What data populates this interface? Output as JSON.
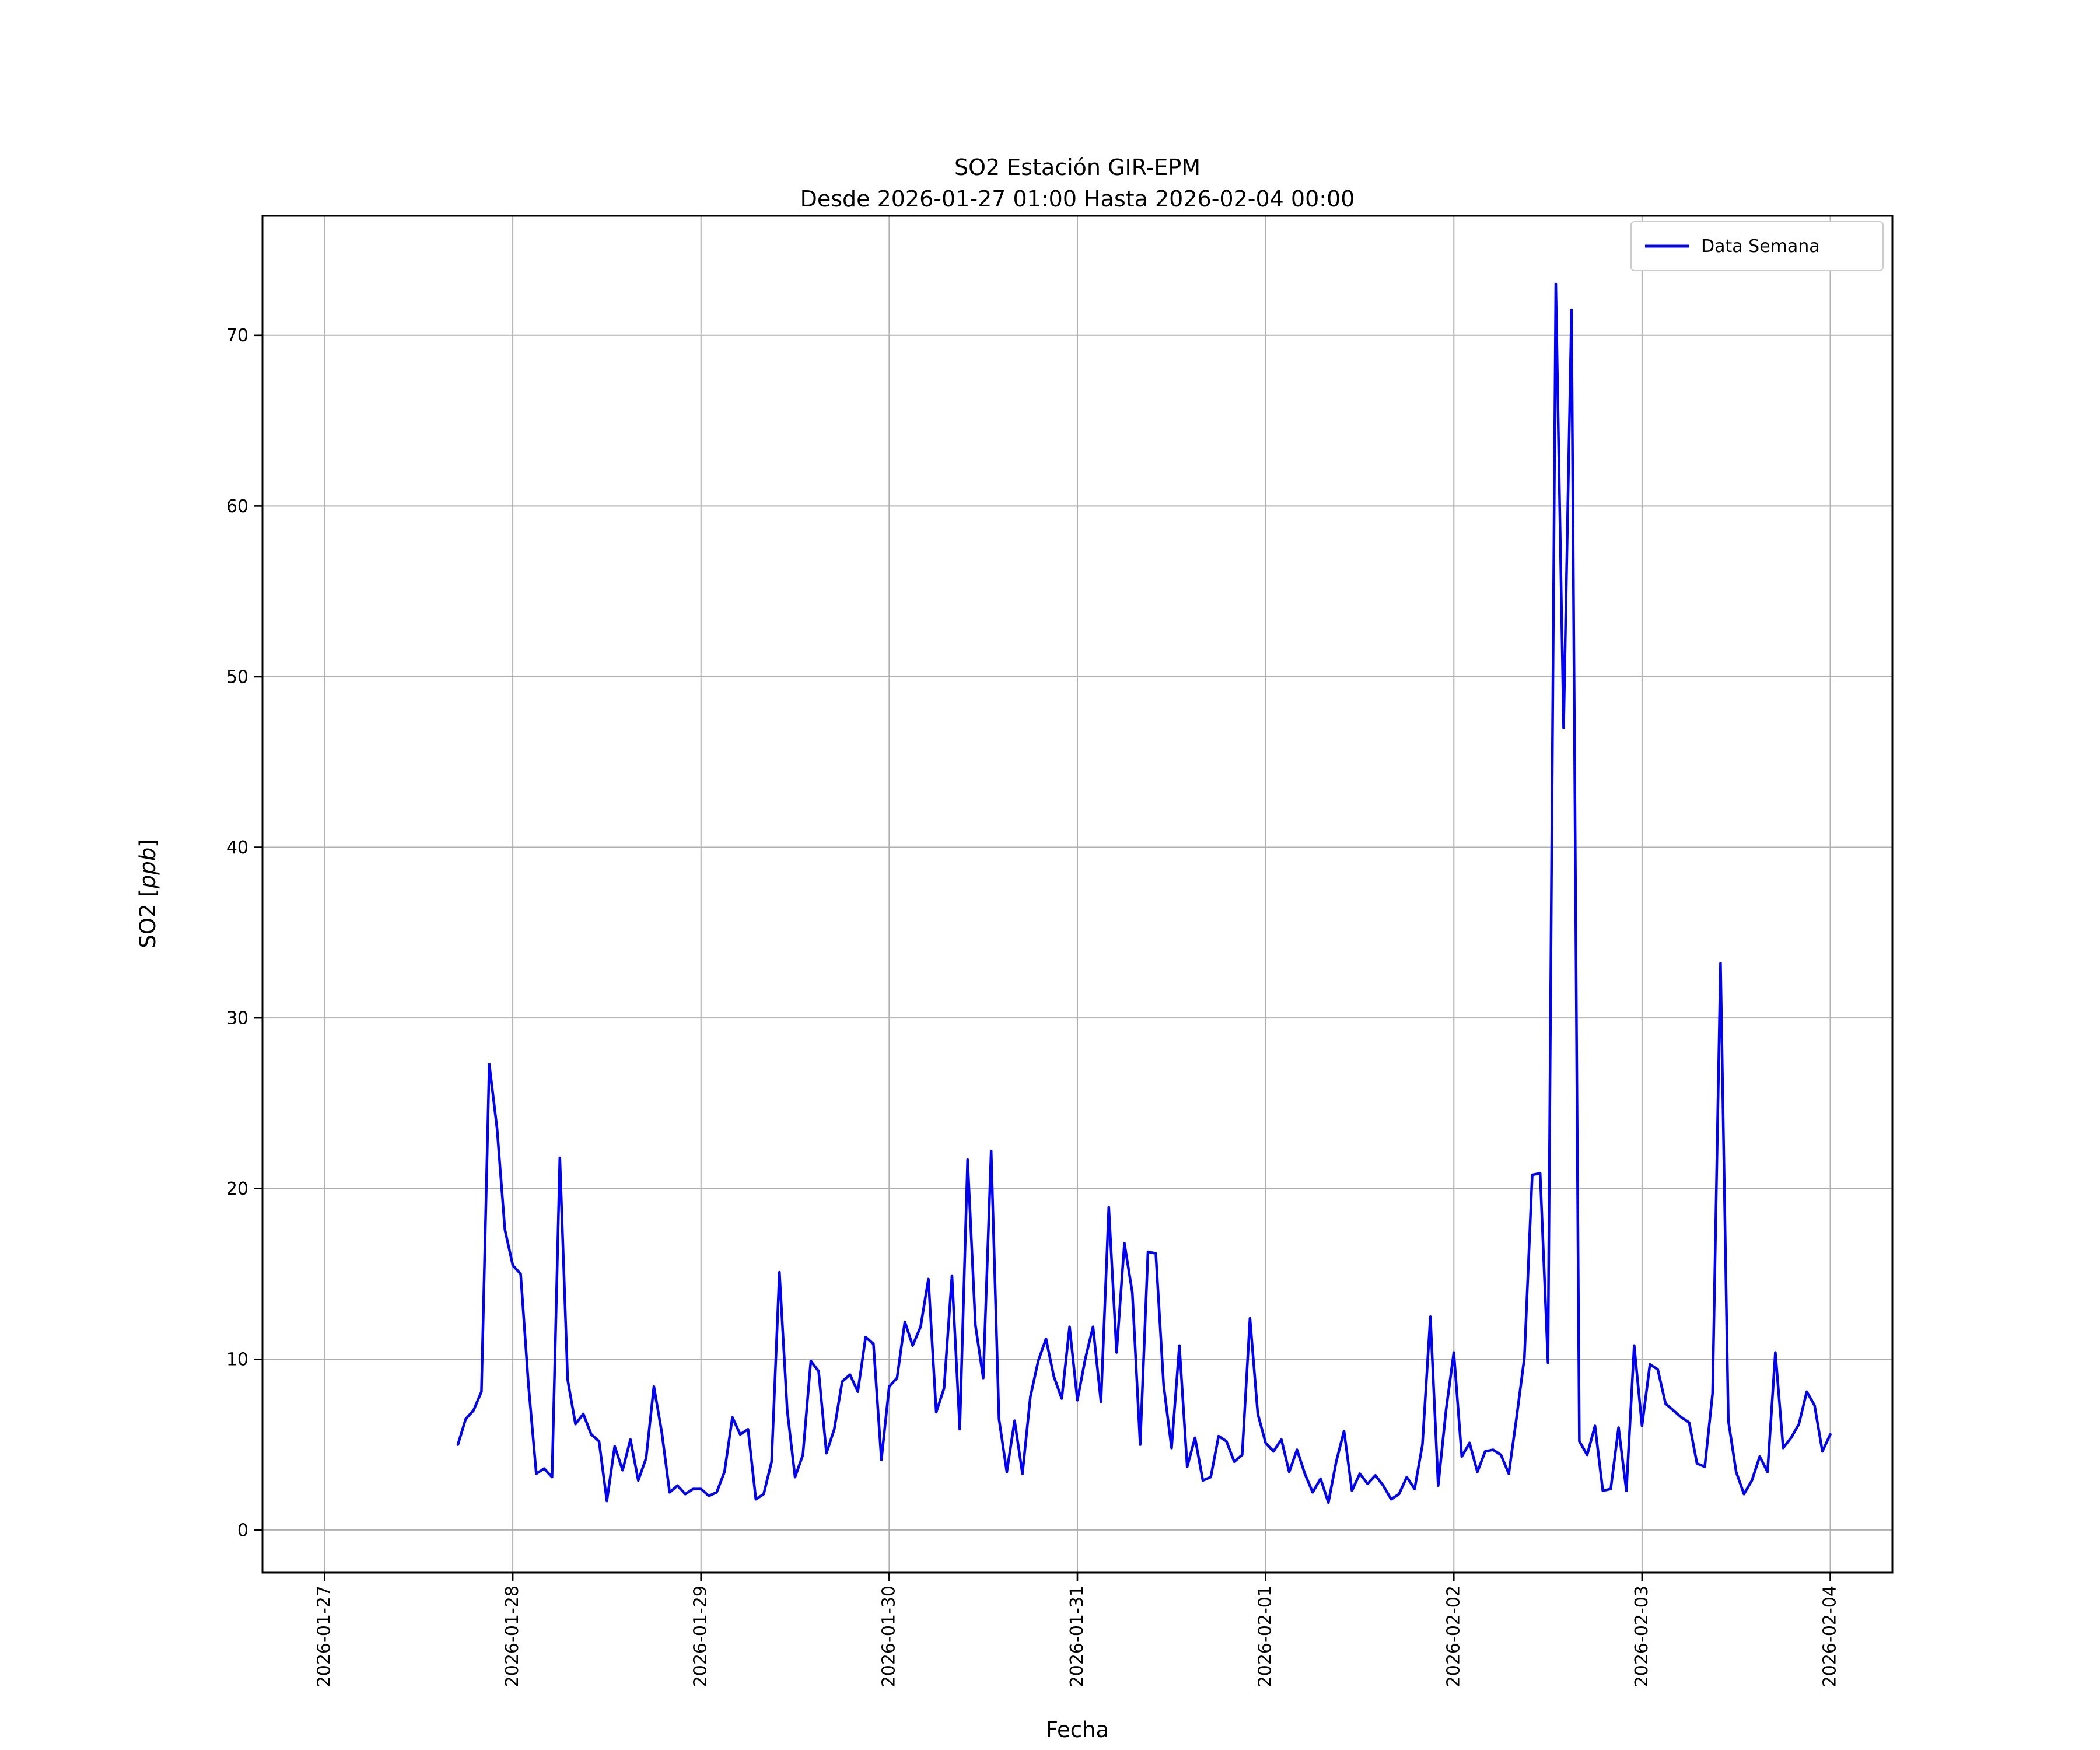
{
  "figure": {
    "background": "#ffffff"
  },
  "chart_data": {
    "type": "line",
    "title": "SO2 Estación GIR-EPM",
    "subtitle": "Desde 2026-01-27 01:00 Hasta 2026-02-04 00:00",
    "xlabel": "Fecha",
    "ylabel": {
      "text": "SO2 [ppb]",
      "prefix": "SO2 [",
      "italic": "ppb",
      "suffix": "]"
    },
    "grid": true,
    "grid_color": "#b0b0b0",
    "legend_position": "upper right",
    "xlim_days": [
      -0.33,
      8.33
    ],
    "ylim": [
      -2.5,
      77
    ],
    "y_ticks": [
      0,
      10,
      20,
      30,
      40,
      50,
      60,
      70
    ],
    "x_ticks": [
      {
        "day": 0,
        "label": "2026-01-27"
      },
      {
        "day": 1,
        "label": "2026-01-28"
      },
      {
        "day": 2,
        "label": "2026-01-29"
      },
      {
        "day": 3,
        "label": "2026-01-30"
      },
      {
        "day": 4,
        "label": "2026-01-31"
      },
      {
        "day": 5,
        "label": "2026-02-01"
      },
      {
        "day": 6,
        "label": "2026-02-02"
      },
      {
        "day": 7,
        "label": "2026-02-03"
      },
      {
        "day": 8,
        "label": "2026-02-04"
      }
    ],
    "series": [
      {
        "name": "Data Semana",
        "color": "#0000ff",
        "x": {
          "unit": "hours since 2026-01-27 00:00",
          "start": 17,
          "step": 1,
          "count": 176
        },
        "values": [
          5.0,
          6.5,
          7.0,
          8.1,
          27.3,
          23.5,
          17.6,
          15.5,
          15.0,
          8.5,
          3.3,
          3.6,
          3.1,
          21.8,
          8.8,
          6.2,
          6.8,
          5.6,
          5.2,
          1.7,
          4.9,
          3.5,
          5.3,
          2.9,
          4.2,
          8.4,
          5.7,
          2.2,
          2.6,
          2.1,
          2.4,
          2.4,
          2.0,
          2.2,
          3.4,
          6.6,
          5.6,
          5.9,
          1.8,
          2.1,
          4.0,
          15.1,
          7.0,
          3.1,
          4.4,
          9.9,
          9.3,
          4.5,
          5.9,
          8.7,
          9.1,
          8.1,
          11.3,
          10.9,
          4.1,
          8.4,
          8.9,
          12.2,
          10.8,
          11.9,
          14.7,
          6.9,
          8.3,
          14.9,
          5.9,
          21.7,
          12.0,
          8.9,
          22.2,
          6.5,
          3.4,
          6.4,
          3.3,
          7.8,
          9.9,
          11.2,
          9.0,
          7.7,
          11.9,
          7.6,
          10.0,
          11.9,
          7.5,
          18.9,
          10.4,
          16.8,
          13.9,
          5.0,
          16.3,
          16.2,
          8.5,
          4.8,
          10.8,
          3.7,
          5.4,
          2.9,
          3.1,
          5.5,
          5.2,
          4.0,
          4.4,
          12.4,
          6.8,
          5.1,
          4.6,
          5.3,
          3.4,
          4.7,
          3.3,
          2.2,
          3.0,
          1.6,
          4.0,
          5.8,
          2.3,
          3.3,
          2.7,
          3.2,
          2.6,
          1.8,
          2.1,
          3.1,
          2.4,
          5.0,
          12.5,
          2.6,
          7.0,
          10.4,
          4.3,
          5.1,
          3.4,
          4.6,
          4.7,
          4.4,
          3.3,
          6.6,
          10.1,
          20.8,
          20.9,
          9.8,
          73.0,
          47.0,
          71.5,
          5.2,
          4.4,
          6.1,
          2.3,
          2.4,
          6.0,
          2.3,
          10.8,
          6.1,
          9.7,
          9.4,
          7.4,
          7.0,
          6.6,
          6.3,
          3.9,
          3.7,
          8.0,
          33.2,
          6.4,
          3.4,
          2.1,
          2.9,
          4.3,
          3.4,
          10.4,
          4.8,
          5.4,
          6.2,
          8.1,
          7.3,
          4.6,
          5.6
        ]
      }
    ]
  }
}
